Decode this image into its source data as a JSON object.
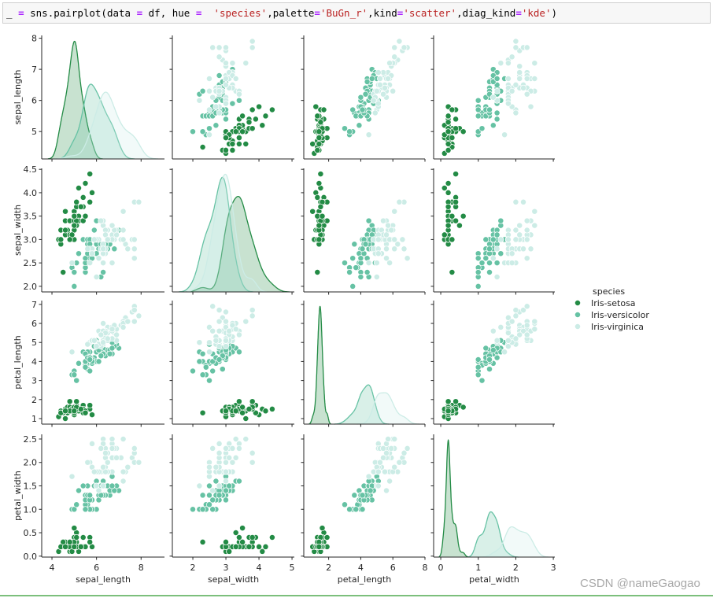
{
  "code_cell": {
    "segments": [
      {
        "text": "_ ",
        "style": "plain"
      },
      {
        "text": "=",
        "style": "op"
      },
      {
        "text": " sns.pairplot(data ",
        "style": "plain"
      },
      {
        "text": "=",
        "style": "op"
      },
      {
        "text": " df, hue ",
        "style": "plain"
      },
      {
        "text": "=",
        "style": "op"
      },
      {
        "text": "  ",
        "style": "plain"
      },
      {
        "text": "'species'",
        "style": "str"
      },
      {
        "text": ",palette",
        "style": "plain"
      },
      {
        "text": "=",
        "style": "op"
      },
      {
        "text": "'BuGn_r'",
        "style": "str"
      },
      {
        "text": ",kind",
        "style": "plain"
      },
      {
        "text": "=",
        "style": "op"
      },
      {
        "text": "'scatter'",
        "style": "str"
      },
      {
        "text": ",diag_kind",
        "style": "plain"
      },
      {
        "text": "=",
        "style": "op"
      },
      {
        "text": "'kde'",
        "style": "str"
      },
      {
        "text": ")",
        "style": "plain"
      }
    ]
  },
  "watermark": "CSDN @nameGaogao",
  "chart_data": {
    "type": "scatter",
    "layout": "pairplot",
    "diag_kind": "kde",
    "hue": "species",
    "legend": {
      "title": "species",
      "placement": "right"
    },
    "grid": false,
    "variables": [
      "sepal_length",
      "sepal_width",
      "petal_length",
      "petal_width"
    ],
    "axes": {
      "sepal_length": {
        "lim": [
          3.54,
          9.05
        ],
        "row_lim": [
          4.12,
          8.09
        ],
        "x_ticks": [
          4,
          6,
          8
        ],
        "x_tick_labels": [
          "4",
          "6",
          "8"
        ],
        "y_ticks": [
          5,
          6,
          7,
          8
        ],
        "y_tick_labels": [
          "5",
          "6",
          "7",
          "8"
        ]
      },
      "sepal_width": {
        "lim": [
          1.38,
          5.07
        ],
        "row_lim": [
          1.88,
          4.52
        ],
        "x_ticks": [
          2,
          3,
          4,
          5
        ],
        "x_tick_labels": [
          "2",
          "3",
          "4",
          "5"
        ],
        "y_ticks": [
          2.0,
          2.5,
          3.0,
          3.5,
          4.0,
          4.5
        ],
        "y_tick_labels": [
          "2.0",
          "2.5",
          "3.0",
          "3.5",
          "4.0",
          "4.5"
        ]
      },
      "petal_length": {
        "lim": [
          0.45,
          8.0
        ],
        "row_lim": [
          0.71,
          7.2
        ],
        "x_ticks": [
          2,
          4,
          6,
          8
        ],
        "x_tick_labels": [
          "2",
          "4",
          "6",
          "8"
        ],
        "y_ticks": [
          1,
          2,
          3,
          4,
          5,
          6,
          7
        ],
        "y_tick_labels": [
          "1",
          "2",
          "3",
          "4",
          "5",
          "6",
          "7"
        ]
      },
      "petal_width": {
        "lim": [
          -0.19,
          3.04
        ],
        "row_lim": [
          -0.02,
          2.6
        ],
        "x_ticks": [
          0,
          1,
          2,
          3
        ],
        "x_tick_labels": [
          "0",
          "1",
          "2",
          "3"
        ],
        "y_ticks": [
          0.0,
          0.5,
          1.0,
          1.5,
          2.0,
          2.5
        ],
        "y_tick_labels": [
          "0.0",
          "0.5",
          "1.0",
          "1.5",
          "2.0",
          "2.5"
        ]
      }
    },
    "species": [
      {
        "name": "Iris-setosa",
        "color": "#238b45",
        "rows": [
          [
            5.1,
            3.5,
            1.4,
            0.2
          ],
          [
            4.9,
            3.0,
            1.4,
            0.2
          ],
          [
            4.7,
            3.2,
            1.3,
            0.2
          ],
          [
            4.6,
            3.1,
            1.5,
            0.2
          ],
          [
            5.0,
            3.6,
            1.4,
            0.2
          ],
          [
            5.4,
            3.9,
            1.7,
            0.4
          ],
          [
            4.6,
            3.4,
            1.4,
            0.3
          ],
          [
            5.0,
            3.4,
            1.5,
            0.2
          ],
          [
            4.4,
            2.9,
            1.4,
            0.2
          ],
          [
            4.9,
            3.1,
            1.5,
            0.1
          ],
          [
            5.4,
            3.7,
            1.5,
            0.2
          ],
          [
            4.8,
            3.4,
            1.6,
            0.2
          ],
          [
            4.8,
            3.0,
            1.4,
            0.1
          ],
          [
            4.3,
            3.0,
            1.1,
            0.1
          ],
          [
            5.8,
            4.0,
            1.2,
            0.2
          ],
          [
            5.7,
            4.4,
            1.5,
            0.4
          ],
          [
            5.4,
            3.9,
            1.3,
            0.4
          ],
          [
            5.1,
            3.5,
            1.4,
            0.3
          ],
          [
            5.7,
            3.8,
            1.7,
            0.3
          ],
          [
            5.1,
            3.8,
            1.5,
            0.3
          ],
          [
            5.4,
            3.4,
            1.7,
            0.2
          ],
          [
            5.1,
            3.7,
            1.5,
            0.4
          ],
          [
            4.6,
            3.6,
            1.0,
            0.2
          ],
          [
            5.1,
            3.3,
            1.7,
            0.5
          ],
          [
            4.8,
            3.4,
            1.9,
            0.2
          ],
          [
            5.0,
            3.0,
            1.6,
            0.2
          ],
          [
            5.0,
            3.4,
            1.6,
            0.4
          ],
          [
            5.2,
            3.5,
            1.5,
            0.2
          ],
          [
            5.2,
            3.4,
            1.4,
            0.2
          ],
          [
            4.7,
            3.2,
            1.6,
            0.2
          ],
          [
            4.8,
            3.1,
            1.6,
            0.2
          ],
          [
            5.4,
            3.4,
            1.5,
            0.4
          ],
          [
            5.2,
            4.1,
            1.5,
            0.1
          ],
          [
            5.5,
            4.2,
            1.4,
            0.2
          ],
          [
            4.9,
            3.1,
            1.5,
            0.1
          ],
          [
            5.0,
            3.2,
            1.2,
            0.2
          ],
          [
            5.5,
            3.5,
            1.3,
            0.2
          ],
          [
            4.9,
            3.1,
            1.5,
            0.1
          ],
          [
            4.4,
            3.0,
            1.3,
            0.2
          ],
          [
            5.1,
            3.4,
            1.5,
            0.2
          ],
          [
            5.0,
            3.5,
            1.3,
            0.3
          ],
          [
            4.5,
            2.3,
            1.3,
            0.3
          ],
          [
            4.4,
            3.2,
            1.3,
            0.2
          ],
          [
            5.0,
            3.5,
            1.6,
            0.6
          ],
          [
            5.1,
            3.8,
            1.9,
            0.4
          ],
          [
            4.8,
            3.0,
            1.4,
            0.3
          ],
          [
            5.1,
            3.8,
            1.6,
            0.2
          ],
          [
            4.6,
            3.2,
            1.4,
            0.2
          ],
          [
            5.3,
            3.7,
            1.5,
            0.2
          ],
          [
            5.0,
            3.3,
            1.4,
            0.2
          ]
        ]
      },
      {
        "name": "Iris-versicolor",
        "color": "#66c2a4",
        "rows": [
          [
            7.0,
            3.2,
            4.7,
            1.4
          ],
          [
            6.4,
            3.2,
            4.5,
            1.5
          ],
          [
            6.9,
            3.1,
            4.9,
            1.5
          ],
          [
            5.5,
            2.3,
            4.0,
            1.3
          ],
          [
            6.5,
            2.8,
            4.6,
            1.5
          ],
          [
            5.7,
            2.8,
            4.5,
            1.3
          ],
          [
            6.3,
            3.3,
            4.7,
            1.6
          ],
          [
            4.9,
            2.4,
            3.3,
            1.0
          ],
          [
            6.6,
            2.9,
            4.6,
            1.3
          ],
          [
            5.2,
            2.7,
            3.9,
            1.4
          ],
          [
            5.0,
            2.0,
            3.5,
            1.0
          ],
          [
            5.9,
            3.0,
            4.2,
            1.5
          ],
          [
            6.0,
            2.2,
            4.0,
            1.0
          ],
          [
            6.1,
            2.9,
            4.7,
            1.4
          ],
          [
            5.6,
            2.9,
            3.6,
            1.3
          ],
          [
            6.7,
            3.1,
            4.4,
            1.4
          ],
          [
            5.6,
            3.0,
            4.5,
            1.5
          ],
          [
            5.8,
            2.7,
            4.1,
            1.0
          ],
          [
            6.2,
            2.2,
            4.5,
            1.5
          ],
          [
            5.6,
            2.5,
            3.9,
            1.1
          ],
          [
            5.9,
            3.2,
            4.8,
            1.8
          ],
          [
            6.1,
            2.8,
            4.0,
            1.3
          ],
          [
            6.3,
            2.5,
            4.9,
            1.5
          ],
          [
            6.1,
            2.8,
            4.7,
            1.2
          ],
          [
            6.4,
            2.9,
            4.3,
            1.3
          ],
          [
            6.6,
            3.0,
            4.4,
            1.4
          ],
          [
            6.8,
            2.8,
            4.8,
            1.4
          ],
          [
            6.7,
            3.0,
            5.0,
            1.7
          ],
          [
            6.0,
            2.9,
            4.5,
            1.5
          ],
          [
            5.7,
            2.6,
            3.5,
            1.0
          ],
          [
            5.5,
            2.4,
            3.8,
            1.1
          ],
          [
            5.5,
            2.4,
            3.7,
            1.0
          ],
          [
            5.8,
            2.7,
            3.9,
            1.2
          ],
          [
            6.0,
            2.7,
            5.1,
            1.6
          ],
          [
            5.4,
            3.0,
            4.5,
            1.5
          ],
          [
            6.0,
            3.4,
            4.5,
            1.6
          ],
          [
            6.7,
            3.1,
            4.7,
            1.5
          ],
          [
            6.3,
            2.3,
            4.4,
            1.3
          ],
          [
            5.6,
            3.0,
            4.1,
            1.3
          ],
          [
            5.5,
            2.5,
            4.0,
            1.3
          ],
          [
            5.5,
            2.6,
            4.4,
            1.2
          ],
          [
            6.1,
            3.0,
            4.6,
            1.4
          ],
          [
            5.8,
            2.6,
            4.0,
            1.2
          ],
          [
            5.0,
            2.3,
            3.3,
            1.0
          ],
          [
            5.6,
            2.7,
            4.2,
            1.3
          ],
          [
            5.7,
            3.0,
            4.2,
            1.2
          ],
          [
            5.7,
            2.9,
            4.2,
            1.3
          ],
          [
            6.2,
            2.9,
            4.3,
            1.3
          ],
          [
            5.1,
            2.5,
            3.0,
            1.1
          ],
          [
            5.7,
            2.8,
            4.1,
            1.3
          ]
        ]
      },
      {
        "name": "Iris-virginica",
        "color": "#ccece6",
        "rows": [
          [
            6.3,
            3.3,
            6.0,
            2.5
          ],
          [
            5.8,
            2.7,
            5.1,
            1.9
          ],
          [
            7.1,
            3.0,
            5.9,
            2.1
          ],
          [
            6.3,
            2.9,
            5.6,
            1.8
          ],
          [
            6.5,
            3.0,
            5.8,
            2.2
          ],
          [
            7.6,
            3.0,
            6.6,
            2.1
          ],
          [
            4.9,
            2.5,
            4.5,
            1.7
          ],
          [
            7.3,
            2.9,
            6.3,
            1.8
          ],
          [
            6.7,
            2.5,
            5.8,
            1.8
          ],
          [
            7.2,
            3.6,
            6.1,
            2.5
          ],
          [
            6.5,
            3.2,
            5.1,
            2.0
          ],
          [
            6.4,
            2.7,
            5.3,
            1.9
          ],
          [
            6.8,
            3.0,
            5.5,
            2.1
          ],
          [
            5.7,
            2.5,
            5.0,
            2.0
          ],
          [
            5.8,
            2.8,
            5.1,
            2.4
          ],
          [
            6.4,
            3.2,
            5.3,
            2.3
          ],
          [
            6.5,
            3.0,
            5.5,
            1.8
          ],
          [
            7.7,
            3.8,
            6.7,
            2.2
          ],
          [
            7.7,
            2.6,
            6.9,
            2.3
          ],
          [
            6.0,
            2.2,
            5.0,
            1.5
          ],
          [
            6.9,
            3.2,
            5.7,
            2.3
          ],
          [
            5.6,
            2.8,
            4.9,
            2.0
          ],
          [
            7.7,
            2.8,
            6.7,
            2.0
          ],
          [
            6.3,
            2.7,
            4.9,
            1.8
          ],
          [
            6.7,
            3.3,
            5.7,
            2.1
          ],
          [
            7.2,
            3.2,
            6.0,
            1.8
          ],
          [
            6.2,
            2.8,
            4.8,
            1.8
          ],
          [
            6.1,
            3.0,
            4.9,
            1.8
          ],
          [
            6.4,
            2.8,
            5.6,
            2.1
          ],
          [
            7.2,
            3.0,
            5.8,
            1.6
          ],
          [
            7.4,
            2.8,
            6.1,
            1.9
          ],
          [
            7.9,
            3.8,
            6.4,
            2.0
          ],
          [
            6.4,
            2.8,
            5.6,
            2.2
          ],
          [
            6.3,
            2.8,
            5.1,
            1.5
          ],
          [
            6.1,
            2.6,
            5.6,
            1.4
          ],
          [
            7.7,
            3.0,
            6.1,
            2.3
          ],
          [
            6.3,
            3.4,
            5.6,
            2.4
          ],
          [
            6.4,
            3.1,
            5.5,
            1.8
          ],
          [
            6.0,
            3.0,
            4.8,
            1.8
          ],
          [
            6.9,
            3.1,
            5.4,
            2.1
          ],
          [
            6.7,
            3.1,
            5.6,
            2.4
          ],
          [
            6.9,
            3.1,
            5.1,
            2.3
          ],
          [
            5.8,
            2.7,
            5.1,
            1.9
          ],
          [
            6.8,
            3.2,
            5.9,
            2.3
          ],
          [
            6.7,
            3.3,
            5.7,
            2.5
          ],
          [
            6.7,
            3.0,
            5.2,
            2.3
          ],
          [
            6.3,
            2.5,
            5.0,
            1.9
          ],
          [
            6.5,
            3.0,
            5.2,
            2.0
          ],
          [
            6.2,
            3.4,
            5.4,
            2.3
          ],
          [
            5.9,
            3.0,
            5.1,
            1.8
          ]
        ]
      }
    ]
  }
}
